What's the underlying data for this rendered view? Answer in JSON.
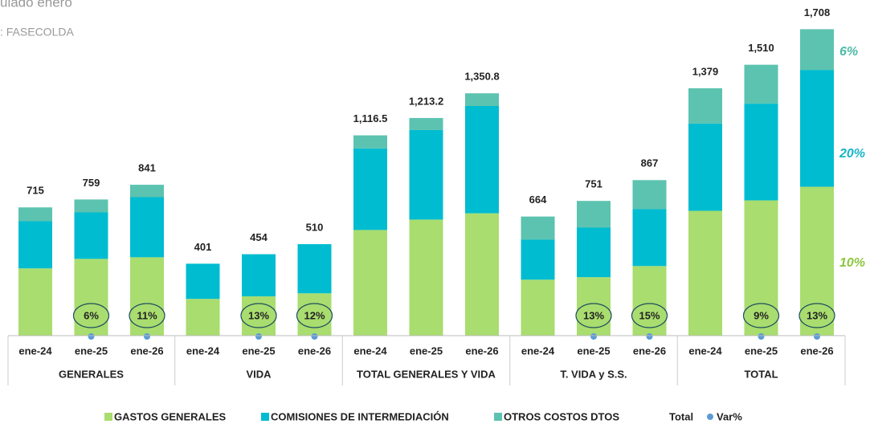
{
  "chart_data": {
    "type": "bar",
    "stacked": true,
    "title": "ulado enero",
    "subtitle": ": FASECOLDA",
    "groups": [
      "GENERALES",
      "VIDA",
      "TOTAL GENERALES Y VIDA",
      "T. VIDA y S.S.",
      "TOTAL"
    ],
    "categories": [
      "ene-24",
      "ene-25",
      "ene-26",
      "ene-24",
      "ene-25",
      "ene-26",
      "ene-24",
      "ene-25",
      "ene-26",
      "ene-24",
      "ene-25",
      "ene-26",
      "ene-24",
      "ene-25",
      "ene-26"
    ],
    "ylim": [
      0,
      1750
    ],
    "series": [
      {
        "name": "GASTOS GENERALES",
        "color": "#a9dd6f",
        "values": [
          375,
          428,
          437,
          205,
          219,
          236,
          589,
          647,
          682,
          312,
          326,
          388,
          696,
          754,
          830
        ]
      },
      {
        "name": "COMISIONES DE INTERMEDIACIÓN",
        "color": "#00bcd0",
        "values": [
          263,
          259,
          335,
          196,
          235,
          274,
          455,
          499,
          598,
          223,
          276,
          317,
          486,
          539,
          651
        ]
      },
      {
        "name": "OTROS COSTOS DTOS",
        "color": "#5cc3b0",
        "values": [
          77,
          72,
          69,
          0,
          0,
          0,
          72.5,
          67.2,
          70.8,
          129,
          149,
          162,
          197,
          217,
          227
        ]
      },
      {
        "name": "Total",
        "values": [
          715,
          759,
          841,
          401,
          454,
          510,
          1116.5,
          1213.2,
          1350.8,
          664,
          751,
          867,
          1379,
          1510,
          1708
        ],
        "value_labels": [
          "715",
          "759",
          "841",
          "401",
          "454",
          "510",
          "1,116.5",
          "1,213.2",
          "1,350.8",
          "664",
          "751",
          "867",
          "1,379",
          "1,510",
          "1,708"
        ]
      },
      {
        "name": "Var%",
        "color": "#5b9bd5",
        "values": [
          null,
          6,
          11,
          null,
          13,
          12,
          null,
          null,
          null,
          null,
          13,
          15,
          null,
          9,
          13
        ],
        "value_labels": [
          null,
          "6%",
          "11%",
          null,
          "13%",
          "12%",
          null,
          null,
          null,
          null,
          "13%",
          "15%",
          null,
          "9%",
          "13%"
        ]
      }
    ],
    "annotations": [
      {
        "text": "6%",
        "color": "#4dbba6"
      },
      {
        "text": "20%",
        "color": "#19b5c5"
      },
      {
        "text": "10%",
        "color": "#8cc63f"
      }
    ]
  }
}
